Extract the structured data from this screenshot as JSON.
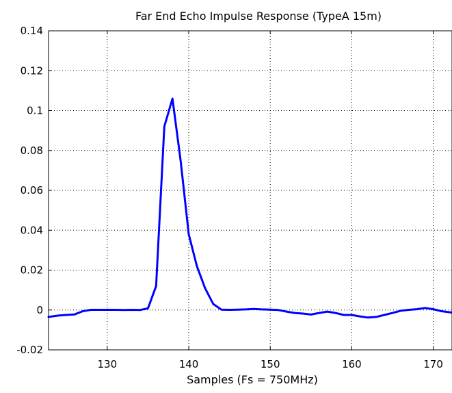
{
  "chart_data": {
    "type": "line",
    "title": "Far End Echo Impulse Response (TypeA 15m)",
    "xlabel": "Samples (Fs = 750MHz)",
    "ylabel": "",
    "xlim": [
      122.8,
      172.3
    ],
    "ylim": [
      -0.02,
      0.14
    ],
    "xticks": [
      130,
      140,
      150,
      160,
      170
    ],
    "yticks": [
      -0.02,
      0,
      0.02,
      0.04,
      0.06,
      0.08,
      0.1,
      0.12,
      0.14
    ],
    "xtick_labels": [
      "130",
      "140",
      "150",
      "160",
      "170"
    ],
    "ytick_labels": [
      "-0.02",
      "0",
      "0.02",
      "0.04",
      "0.06",
      "0.08",
      "0.1",
      "0.12",
      "0.14"
    ],
    "grid": true,
    "legend": "none",
    "series": [
      {
        "color": "#0000ff",
        "x": [
          122.8,
          124,
          125,
          126,
          127,
          128,
          129,
          130,
          131,
          132,
          133,
          134,
          135,
          136,
          137,
          138,
          139,
          140,
          141,
          142,
          143,
          144,
          145,
          146,
          147,
          148,
          149,
          150,
          151,
          152,
          153,
          154,
          155,
          156,
          157,
          158,
          159,
          160,
          161,
          162,
          163,
          164,
          165,
          166,
          167,
          168,
          169,
          170,
          171,
          172.3
        ],
        "y": [
          -0.0035,
          -0.0028,
          -0.0025,
          -0.0022,
          -0.0006,
          0.0001,
          0.0001,
          0.0001,
          0.0001,
          0.0,
          0.0001,
          0.0,
          0.0008,
          0.012,
          0.092,
          0.106,
          0.075,
          0.038,
          0.022,
          0.011,
          0.003,
          0.0002,
          0.0001,
          0.0002,
          0.0003,
          0.0005,
          0.0003,
          0.0002,
          0.0,
          -0.0008,
          -0.0015,
          -0.0018,
          -0.0023,
          -0.0015,
          -0.0008,
          -0.0015,
          -0.0025,
          -0.0025,
          -0.0032,
          -0.0038,
          -0.0035,
          -0.0025,
          -0.0015,
          -0.0004,
          0.0001,
          0.0004,
          0.001,
          0.0004,
          -0.0006,
          -0.0013
        ]
      }
    ]
  }
}
